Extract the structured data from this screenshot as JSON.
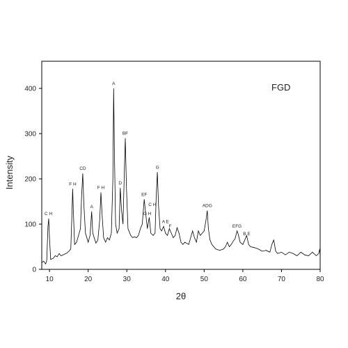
{
  "chart_data": {
    "type": "line",
    "title": "",
    "xlabel": "2θ",
    "ylabel": "Intensity",
    "xlim": [
      8,
      80
    ],
    "ylim": [
      0,
      460
    ],
    "x_ticks": [
      10,
      20,
      30,
      40,
      50,
      60,
      70,
      80
    ],
    "y_ticks": [
      0,
      100,
      200,
      300,
      400
    ],
    "grid": false,
    "legend": {
      "text": "FGD",
      "position": "top-right"
    },
    "series": [
      {
        "points": [
          [
            8.0,
            15
          ],
          [
            8.5,
            18
          ],
          [
            9.0,
            12
          ],
          [
            9.3,
            20
          ],
          [
            9.6,
            95
          ],
          [
            9.8,
            112
          ],
          [
            10.0,
            70
          ],
          [
            10.3,
            22
          ],
          [
            11.0,
            25
          ],
          [
            11.5,
            30
          ],
          [
            12.0,
            28
          ],
          [
            12.5,
            35
          ],
          [
            13.0,
            30
          ],
          [
            13.5,
            32
          ],
          [
            14.0,
            34
          ],
          [
            14.5,
            36
          ],
          [
            15.0,
            40
          ],
          [
            15.5,
            45
          ],
          [
            15.8,
            120
          ],
          [
            16.0,
            178
          ],
          [
            16.2,
            120
          ],
          [
            16.5,
            55
          ],
          [
            17.0,
            60
          ],
          [
            17.5,
            75
          ],
          [
            18.0,
            90
          ],
          [
            18.3,
            160
          ],
          [
            18.6,
            212
          ],
          [
            18.9,
            140
          ],
          [
            19.3,
            80
          ],
          [
            20.0,
            60
          ],
          [
            20.5,
            75
          ],
          [
            20.9,
            128
          ],
          [
            21.2,
            80
          ],
          [
            22.0,
            58
          ],
          [
            22.5,
            65
          ],
          [
            23.0,
            110
          ],
          [
            23.3,
            170
          ],
          [
            23.6,
            120
          ],
          [
            24.0,
            70
          ],
          [
            24.5,
            60
          ],
          [
            25.0,
            70
          ],
          [
            25.5,
            65
          ],
          [
            26.0,
            80
          ],
          [
            26.4,
            200
          ],
          [
            26.6,
            400
          ],
          [
            26.8,
            260
          ],
          [
            27.1,
            100
          ],
          [
            27.5,
            80
          ],
          [
            28.0,
            90
          ],
          [
            28.3,
            180
          ],
          [
            28.6,
            135
          ],
          [
            29.0,
            100
          ],
          [
            29.4,
            230
          ],
          [
            29.6,
            290
          ],
          [
            29.9,
            180
          ],
          [
            30.3,
            90
          ],
          [
            31.0,
            75
          ],
          [
            31.5,
            70
          ],
          [
            32.0,
            72
          ],
          [
            32.5,
            70
          ],
          [
            33.0,
            75
          ],
          [
            33.5,
            90
          ],
          [
            34.0,
            100
          ],
          [
            34.5,
            155
          ],
          [
            34.8,
            130
          ],
          [
            35.3,
            90
          ],
          [
            35.8,
            115
          ],
          [
            36.2,
            80
          ],
          [
            36.8,
            75
          ],
          [
            37.3,
            80
          ],
          [
            37.6,
            160
          ],
          [
            37.9,
            215
          ],
          [
            38.2,
            140
          ],
          [
            38.6,
            90
          ],
          [
            39.0,
            85
          ],
          [
            39.5,
            95
          ],
          [
            40.0,
            80
          ],
          [
            40.5,
            75
          ],
          [
            41.0,
            90
          ],
          [
            41.5,
            80
          ],
          [
            42.0,
            70
          ],
          [
            42.5,
            75
          ],
          [
            43.0,
            92
          ],
          [
            43.5,
            80
          ],
          [
            44.0,
            60
          ],
          [
            44.5,
            55
          ],
          [
            45.0,
            60
          ],
          [
            46.0,
            55
          ],
          [
            47.0,
            85
          ],
          [
            47.5,
            70
          ],
          [
            48.0,
            60
          ],
          [
            48.5,
            85
          ],
          [
            49.0,
            75
          ],
          [
            49.5,
            80
          ],
          [
            50.0,
            85
          ],
          [
            50.5,
            110
          ],
          [
            50.8,
            130
          ],
          [
            51.1,
            90
          ],
          [
            51.5,
            65
          ],
          [
            52.0,
            55
          ],
          [
            53.0,
            45
          ],
          [
            54.0,
            42
          ],
          [
            55.0,
            45
          ],
          [
            55.5,
            50
          ],
          [
            56.0,
            60
          ],
          [
            56.5,
            50
          ],
          [
            57.0,
            55
          ],
          [
            57.5,
            62
          ],
          [
            58.0,
            68
          ],
          [
            58.5,
            85
          ],
          [
            58.8,
            78
          ],
          [
            59.3,
            60
          ],
          [
            60.0,
            55
          ],
          [
            60.5,
            65
          ],
          [
            61.0,
            75
          ],
          [
            61.5,
            55
          ],
          [
            62.0,
            50
          ],
          [
            63.0,
            48
          ],
          [
            64.0,
            45
          ],
          [
            65.0,
            40
          ],
          [
            66.0,
            42
          ],
          [
            67.0,
            38
          ],
          [
            67.5,
            55
          ],
          [
            68.0,
            65
          ],
          [
            68.5,
            40
          ],
          [
            69.0,
            35
          ],
          [
            70.0,
            38
          ],
          [
            71.0,
            32
          ],
          [
            72.0,
            38
          ],
          [
            73.0,
            35
          ],
          [
            74.0,
            30
          ],
          [
            75.0,
            38
          ],
          [
            76.0,
            32
          ],
          [
            77.0,
            30
          ],
          [
            78.0,
            38
          ],
          [
            79.0,
            30
          ],
          [
            79.6,
            35
          ],
          [
            79.9,
            45
          ],
          [
            80.0,
            30
          ]
        ]
      }
    ],
    "annotations": [
      {
        "text": "C H",
        "x": 9.7,
        "y": 112
      },
      {
        "text": "F H",
        "x": 16.0,
        "y": 178
      },
      {
        "text": "CD",
        "x": 18.6,
        "y": 212
      },
      {
        "text": "A",
        "x": 20.9,
        "y": 128
      },
      {
        "text": "F H",
        "x": 23.3,
        "y": 170
      },
      {
        "text": "A",
        "x": 26.6,
        "y": 400
      },
      {
        "text": "D",
        "x": 28.3,
        "y": 180
      },
      {
        "text": "BF",
        "x": 29.6,
        "y": 290
      },
      {
        "text": "EF",
        "x": 34.5,
        "y": 155
      },
      {
        "text": "C H",
        "x": 36.6,
        "y": 132
      },
      {
        "text": "G H",
        "x": 35.3,
        "y": 112
      },
      {
        "text": "G",
        "x": 37.9,
        "y": 215
      },
      {
        "text": "A E",
        "x": 40.0,
        "y": 95
      },
      {
        "text": "F",
        "x": 41.2,
        "y": 85
      },
      {
        "text": "ADG",
        "x": 50.8,
        "y": 130
      },
      {
        "text": "EFG",
        "x": 58.5,
        "y": 85
      },
      {
        "text": "B E",
        "x": 61.0,
        "y": 68
      }
    ]
  }
}
